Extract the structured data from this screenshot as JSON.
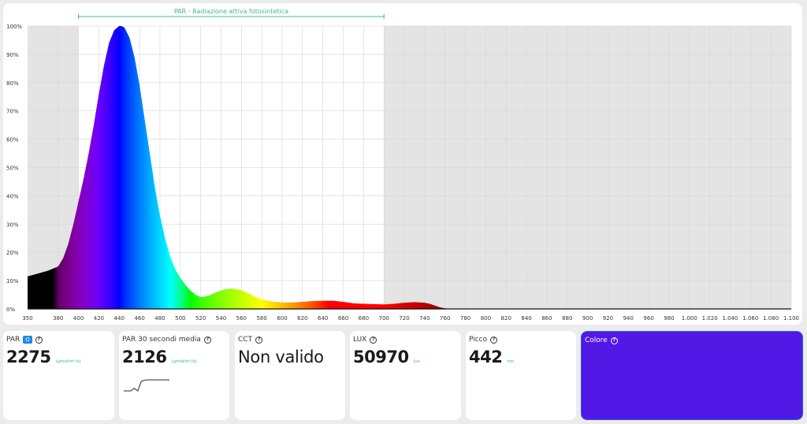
{
  "chart_data": {
    "type": "area",
    "title": "",
    "band_label": "PAR - Radiazione attiva fotosintetica",
    "band_range": [
      400,
      700
    ],
    "xlabel": "",
    "ylabel": "",
    "xlim": [
      350,
      1100
    ],
    "ylim": [
      0,
      100
    ],
    "grid": true,
    "x_ticks": [
      "350",
      "380",
      "400",
      "420",
      "440",
      "460",
      "480",
      "500",
      "520",
      "540",
      "560",
      "580",
      "600",
      "620",
      "640",
      "660",
      "680",
      "700",
      "720",
      "740",
      "760",
      "780",
      "800",
      "820",
      "840",
      "860",
      "880",
      "900",
      "920",
      "940",
      "960",
      "980",
      "1.000",
      "1.020",
      "1.040",
      "1.060",
      "1.080",
      "1.100"
    ],
    "y_ticks": [
      "0%",
      "10%",
      "20%",
      "30%",
      "40%",
      "50%",
      "60%",
      "70%",
      "80%",
      "90%",
      "100%"
    ],
    "series": [
      {
        "x": [
          350,
          360,
          370,
          380,
          385,
          390,
          395,
          400,
          405,
          410,
          415,
          420,
          425,
          430,
          435,
          440,
          442,
          445,
          450,
          455,
          460,
          465,
          470,
          475,
          480,
          485,
          490,
          495,
          500,
          505,
          510,
          515,
          520,
          525,
          530,
          535,
          540,
          545,
          550,
          555,
          560,
          565,
          570,
          575,
          580,
          590,
          600,
          610,
          620,
          630,
          640,
          650,
          660,
          670,
          680,
          690,
          700,
          710,
          720,
          730,
          740,
          745,
          750,
          755,
          760,
          770,
          780,
          800,
          900,
          1000,
          1100
        ],
        "y": [
          11.5,
          12.5,
          13.5,
          15,
          18,
          23,
          30,
          38,
          46,
          55,
          65,
          76,
          86,
          94,
          98.5,
          100,
          100,
          99.5,
          96,
          89,
          79,
          67,
          55,
          43,
          33,
          25,
          18.5,
          14,
          11,
          8.5,
          6.5,
          5,
          4.2,
          4.4,
          5,
          5.8,
          6.5,
          7,
          7.2,
          7,
          6.6,
          5.8,
          4.9,
          4.1,
          3.4,
          2.6,
          2.3,
          2.3,
          2.5,
          2.8,
          2.9,
          2.9,
          2.5,
          2,
          1.8,
          1.7,
          1.6,
          1.8,
          2.2,
          2.4,
          2.2,
          1.8,
          1.2,
          0.6,
          0.2,
          0.05,
          0,
          0,
          0,
          0,
          0
        ]
      }
    ]
  },
  "cards": [
    {
      "title": "PAR",
      "badge": "O",
      "value": "2275",
      "unit": "(μmol/m²/s)"
    },
    {
      "title": "PAR 30 secondi media",
      "value": "2126",
      "unit": "(μmol/m²/s)",
      "sparkline": [
        2000,
        2000,
        2000,
        2030,
        2000,
        2110,
        2122,
        2126,
        2126,
        2126,
        2126,
        2126,
        2126,
        2126
      ]
    },
    {
      "title": "CCT",
      "value": "Non valido",
      "unit": ""
    },
    {
      "title": "LUX",
      "value": "50970",
      "unit": "lux"
    },
    {
      "title": "Picco",
      "value": "442",
      "unit": "nm"
    },
    {
      "title": "Colore",
      "color": "#5118e6"
    }
  ],
  "colors": {
    "band_line": "#3cb89a",
    "band_label": "#3cb89a",
    "outside_band_bg": "#e4e4e4",
    "par_badge": "#1e88e5",
    "unit_text": "#2fb5a0",
    "sparkline": "#555555"
  },
  "icons": {
    "help": "question-circle-icon",
    "badge": "par-info-badge"
  }
}
